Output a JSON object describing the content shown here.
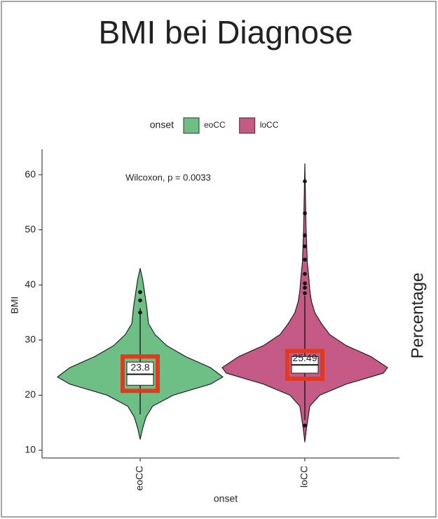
{
  "chart_data": {
    "type": "violin",
    "title": "BMI bei Diagnose",
    "annotation": "Wilcoxon, p = 0.0033",
    "side_label": "Percentage",
    "x_label": "onset",
    "y_label": "BMI",
    "legend_title": "onset",
    "categories": [
      "eoCC",
      "loCC"
    ],
    "ylim": [
      8.6,
      64.6
    ],
    "yticks": [
      10,
      20,
      30,
      40,
      50,
      60
    ],
    "series": [
      {
        "name": "eoCC",
        "color": "#6dbf86",
        "median": 23.8,
        "q1": 21.8,
        "q3": 26.0,
        "whisker": [
          16.5,
          35.8
        ],
        "outliers": [
          35,
          37.2,
          38.7
        ],
        "density_y": [
          12,
          14,
          16,
          18,
          20,
          22,
          23.3,
          25,
          27,
          29,
          31,
          33,
          36,
          39,
          41,
          43
        ],
        "density": [
          0,
          0.03,
          0.07,
          0.15,
          0.4,
          0.85,
          1.0,
          0.85,
          0.55,
          0.32,
          0.18,
          0.1,
          0.08,
          0.05,
          0.03,
          0
        ]
      },
      {
        "name": "loCC",
        "color": "#c55a87",
        "median": 25.49,
        "q1": 24.0,
        "q3": 27.0,
        "whisker": [
          15.5,
          38
        ],
        "outliers": [
          14.5,
          38.5,
          39.5,
          40.3,
          42,
          44.6,
          47,
          49,
          53,
          58.8
        ],
        "density_y": [
          11.5,
          14,
          18,
          20,
          22,
          24,
          25,
          27,
          29,
          31,
          33,
          35,
          37,
          39,
          41,
          44,
          50,
          62
        ],
        "density": [
          0,
          0.02,
          0.06,
          0.18,
          0.5,
          0.95,
          1.0,
          0.8,
          0.5,
          0.3,
          0.2,
          0.12,
          0.08,
          0.06,
          0.05,
          0.03,
          0.015,
          0
        ]
      }
    ]
  }
}
